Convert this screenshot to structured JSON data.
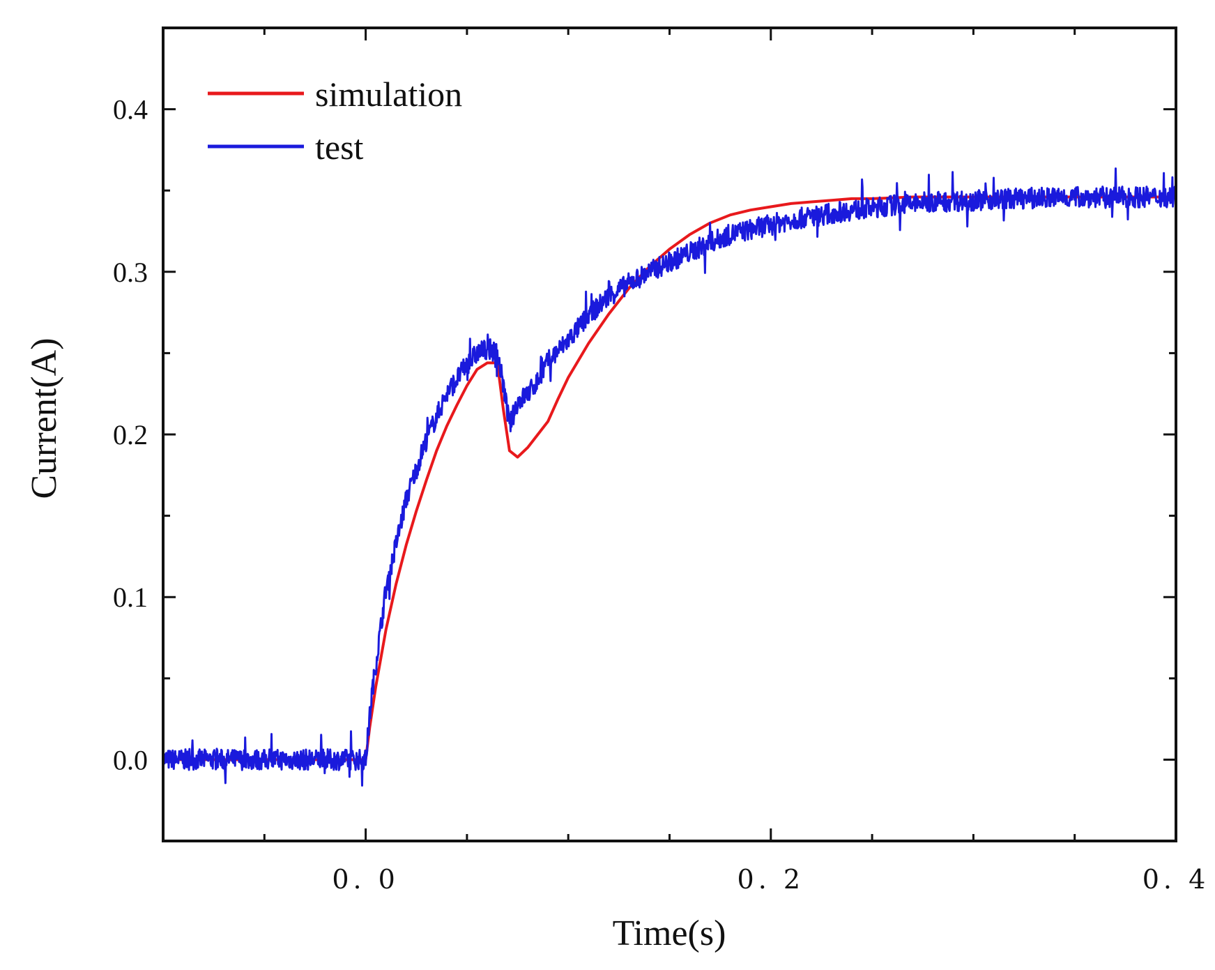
{
  "chart_data": {
    "type": "line",
    "title": "",
    "xlabel": "Time(s)",
    "ylabel": "Current(A)",
    "xlim": [
      -0.1,
      0.4
    ],
    "ylim": [
      -0.05,
      0.45
    ],
    "x_ticks": [
      0.0,
      0.2,
      0.4
    ],
    "x_tick_labels": [
      "0. 0",
      "0. 2",
      "0. 4"
    ],
    "y_ticks": [
      0.0,
      0.1,
      0.2,
      0.3,
      0.4
    ],
    "y_tick_labels": [
      "0.0",
      "0.1",
      "0.2",
      "0.3",
      "0.4"
    ],
    "grid": false,
    "legend_position": "top-left",
    "series": [
      {
        "name": "simulation",
        "color": "#e8191c",
        "x": [
          -0.1,
          0.0,
          0.002,
          0.005,
          0.01,
          0.015,
          0.02,
          0.025,
          0.03,
          0.035,
          0.04,
          0.045,
          0.05,
          0.055,
          0.06,
          0.065,
          0.068,
          0.071,
          0.075,
          0.08,
          0.085,
          0.09,
          0.095,
          0.1,
          0.11,
          0.12,
          0.13,
          0.14,
          0.15,
          0.16,
          0.17,
          0.18,
          0.19,
          0.2,
          0.21,
          0.22,
          0.23,
          0.24,
          0.25,
          0.27,
          0.3,
          0.35,
          0.4
        ],
        "y": [
          0.0,
          0.0,
          0.02,
          0.045,
          0.08,
          0.108,
          0.132,
          0.153,
          0.172,
          0.19,
          0.205,
          0.218,
          0.23,
          0.24,
          0.244,
          0.244,
          0.215,
          0.19,
          0.186,
          0.192,
          0.2,
          0.208,
          0.222,
          0.235,
          0.256,
          0.274,
          0.29,
          0.303,
          0.314,
          0.323,
          0.33,
          0.335,
          0.338,
          0.34,
          0.342,
          0.343,
          0.344,
          0.345,
          0.345,
          0.346,
          0.346,
          0.346,
          0.346
        ]
      },
      {
        "name": "test",
        "color": "#1a1adc",
        "x": [
          -0.1,
          0.0,
          0.003,
          0.01,
          0.02,
          0.03,
          0.04,
          0.05,
          0.055,
          0.06,
          0.065,
          0.068,
          0.071,
          0.075,
          0.08,
          0.085,
          0.09,
          0.1,
          0.11,
          0.12,
          0.13,
          0.14,
          0.15,
          0.16,
          0.17,
          0.18,
          0.19,
          0.2,
          0.21,
          0.22,
          0.23,
          0.24,
          0.25,
          0.26,
          0.27,
          0.28,
          0.3,
          0.32,
          0.35,
          0.4
        ],
        "y": [
          0.0,
          0.0,
          0.04,
          0.105,
          0.16,
          0.197,
          0.225,
          0.243,
          0.25,
          0.253,
          0.25,
          0.23,
          0.205,
          0.22,
          0.225,
          0.233,
          0.245,
          0.258,
          0.273,
          0.285,
          0.293,
          0.3,
          0.306,
          0.312,
          0.318,
          0.323,
          0.326,
          0.329,
          0.332,
          0.334,
          0.336,
          0.338,
          0.339,
          0.341,
          0.342,
          0.343,
          0.344,
          0.345,
          0.346,
          0.346
        ]
      }
    ]
  }
}
